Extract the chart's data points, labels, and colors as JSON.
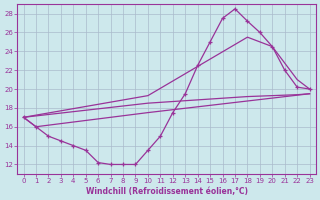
{
  "bg_color": "#cde8ec",
  "grid_color": "#aabbcc",
  "line_color": "#993399",
  "xlabel": "Windchill (Refroidissement éolien,°C)",
  "ylim": [
    11,
    29
  ],
  "xlim": [
    -0.5,
    23.5
  ],
  "yticks": [
    12,
    14,
    16,
    18,
    20,
    22,
    24,
    26,
    28
  ],
  "xticks": [
    0,
    1,
    2,
    3,
    4,
    5,
    6,
    7,
    8,
    9,
    10,
    11,
    12,
    13,
    14,
    15,
    16,
    17,
    18,
    19,
    20,
    21,
    22,
    23
  ],
  "curve1_x": [
    0,
    1,
    2,
    3,
    4,
    5,
    6,
    7,
    8,
    9,
    10,
    11,
    12,
    13,
    14,
    15,
    16,
    17,
    18,
    19,
    20,
    21,
    22,
    23
  ],
  "curve1_y": [
    17.0,
    16.0,
    15.0,
    14.5,
    14.0,
    13.5,
    12.2,
    12.0,
    12.0,
    12.0,
    13.5,
    15.0,
    17.5,
    19.5,
    22.5,
    25.0,
    27.5,
    28.5,
    27.2,
    26.0,
    24.5,
    22.0,
    20.2,
    20.0
  ],
  "curve2_x": [
    0,
    10,
    18,
    20,
    22,
    23
  ],
  "curve2_y": [
    17.0,
    19.3,
    25.5,
    24.5,
    21.0,
    20.0
  ],
  "curve3_x": [
    0,
    10,
    18,
    20,
    22,
    23
  ],
  "curve3_y": [
    17.0,
    18.5,
    19.2,
    19.3,
    19.4,
    19.5
  ],
  "curve4_x": [
    0,
    1,
    10,
    23
  ],
  "curve4_y": [
    17.0,
    16.0,
    17.5,
    19.5
  ]
}
